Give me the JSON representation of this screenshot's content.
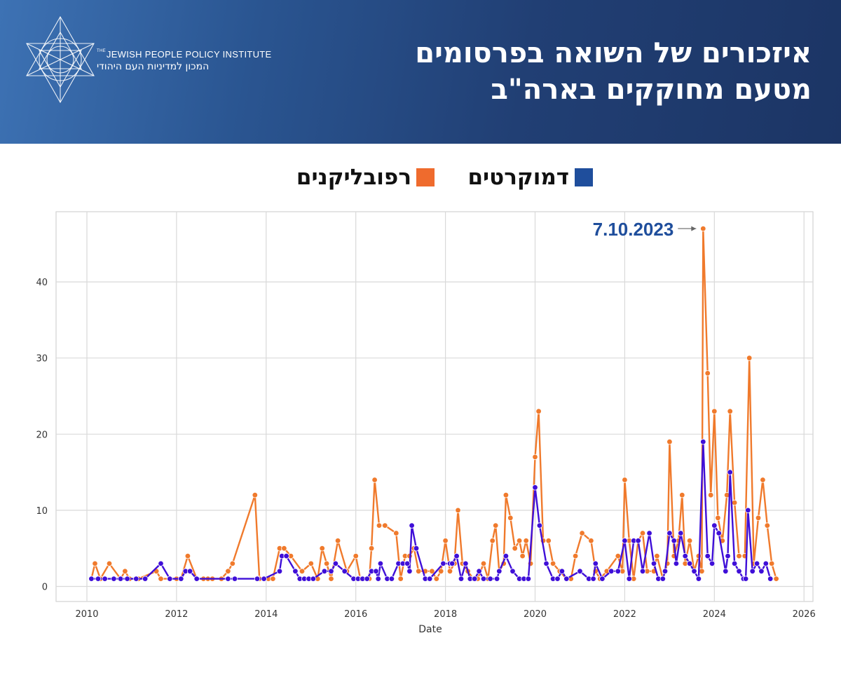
{
  "header": {
    "title_line1": "איזכורים של השואה בפרסומים",
    "title_line2": "מטעם מחוקקים בארה\"ב",
    "logo_en_the": "THE",
    "logo_en": "JEWISH PEOPLE POLICY INSTITUTE",
    "logo_he": "המכון למדיניות העם היהודי"
  },
  "legend": {
    "democrats": "דמוקרטים",
    "republicans": "רפובליקנים"
  },
  "colors": {
    "democrats": "#3f0fd8",
    "republicans": "#f07a2c",
    "legend_democrats": "#1f4e9c",
    "legend_republicans": "#ef6b2d",
    "annotation": "#1f4e9c"
  },
  "chart_data": {
    "type": "line",
    "xlabel": "Date",
    "ylabel": "",
    "xlim": [
      2010,
      2026
    ],
    "ylim": [
      0,
      47
    ],
    "x_ticks": [
      2010,
      2012,
      2014,
      2016,
      2018,
      2020,
      2022,
      2024,
      2026
    ],
    "y_ticks": [
      0,
      10,
      20,
      30,
      40
    ],
    "grid": true,
    "legend_position": "top-center",
    "annotation": {
      "text": "7.10.2023",
      "x": 2023.75,
      "y": 47
    },
    "series": [
      {
        "name": "דמוקרטים",
        "points": [
          [
            2010.1,
            1
          ],
          [
            2010.25,
            1
          ],
          [
            2010.4,
            1
          ],
          [
            2010.6,
            1
          ],
          [
            2010.75,
            1
          ],
          [
            2010.9,
            1
          ],
          [
            2011.1,
            1
          ],
          [
            2011.3,
            1
          ],
          [
            2011.65,
            3
          ],
          [
            2011.85,
            1
          ],
          [
            2012.1,
            1
          ],
          [
            2012.2,
            2
          ],
          [
            2012.3,
            2
          ],
          [
            2012.45,
            1
          ],
          [
            2013.15,
            1
          ],
          [
            2013.3,
            1
          ],
          [
            2013.8,
            1
          ],
          [
            2013.95,
            1
          ],
          [
            2014.3,
            2
          ],
          [
            2014.35,
            4
          ],
          [
            2014.45,
            4
          ],
          [
            2014.65,
            2
          ],
          [
            2014.75,
            1
          ],
          [
            2014.85,
            1
          ],
          [
            2014.95,
            1
          ],
          [
            2015.05,
            1
          ],
          [
            2015.3,
            2
          ],
          [
            2015.45,
            2
          ],
          [
            2015.55,
            3
          ],
          [
            2015.75,
            2
          ],
          [
            2015.95,
            1
          ],
          [
            2016.05,
            1
          ],
          [
            2016.15,
            1
          ],
          [
            2016.25,
            1
          ],
          [
            2016.35,
            2
          ],
          [
            2016.45,
            2
          ],
          [
            2016.5,
            1
          ],
          [
            2016.55,
            3
          ],
          [
            2016.7,
            1
          ],
          [
            2016.8,
            1
          ],
          [
            2016.95,
            3
          ],
          [
            2017.05,
            3
          ],
          [
            2017.15,
            3
          ],
          [
            2017.2,
            2
          ],
          [
            2017.25,
            8
          ],
          [
            2017.35,
            5
          ],
          [
            2017.55,
            1
          ],
          [
            2017.65,
            1
          ],
          [
            2017.95,
            3
          ],
          [
            2018.1,
            3
          ],
          [
            2018.15,
            3
          ],
          [
            2018.25,
            4
          ],
          [
            2018.35,
            1
          ],
          [
            2018.45,
            3
          ],
          [
            2018.55,
            1
          ],
          [
            2018.65,
            1
          ],
          [
            2018.75,
            2
          ],
          [
            2018.85,
            1
          ],
          [
            2019.0,
            1
          ],
          [
            2019.15,
            1
          ],
          [
            2019.2,
            2
          ],
          [
            2019.35,
            4
          ],
          [
            2019.5,
            2
          ],
          [
            2019.65,
            1
          ],
          [
            2019.75,
            1
          ],
          [
            2019.85,
            1
          ],
          [
            2020.0,
            13
          ],
          [
            2020.1,
            8
          ],
          [
            2020.25,
            3
          ],
          [
            2020.4,
            1
          ],
          [
            2020.5,
            1
          ],
          [
            2020.6,
            2
          ],
          [
            2020.7,
            1
          ],
          [
            2021.0,
            2
          ],
          [
            2021.2,
            1
          ],
          [
            2021.3,
            1
          ],
          [
            2021.35,
            3
          ],
          [
            2021.5,
            1
          ],
          [
            2021.7,
            2
          ],
          [
            2021.85,
            2
          ],
          [
            2022.0,
            6
          ],
          [
            2022.1,
            1
          ],
          [
            2022.2,
            6
          ],
          [
            2022.3,
            6
          ],
          [
            2022.4,
            2
          ],
          [
            2022.55,
            7
          ],
          [
            2022.65,
            3
          ],
          [
            2022.75,
            1
          ],
          [
            2022.85,
            1
          ],
          [
            2022.9,
            2
          ],
          [
            2023.0,
            7
          ],
          [
            2023.1,
            6
          ],
          [
            2023.15,
            3
          ],
          [
            2023.25,
            7
          ],
          [
            2023.35,
            4
          ],
          [
            2023.45,
            3
          ],
          [
            2023.55,
            2
          ],
          [
            2023.65,
            1
          ],
          [
            2023.75,
            19
          ],
          [
            2023.85,
            4
          ],
          [
            2023.95,
            3
          ],
          [
            2024.0,
            8
          ],
          [
            2024.1,
            7
          ],
          [
            2024.25,
            2
          ],
          [
            2024.3,
            4
          ],
          [
            2024.35,
            15
          ],
          [
            2024.45,
            3
          ],
          [
            2024.55,
            2
          ],
          [
            2024.65,
            1
          ],
          [
            2024.7,
            1
          ],
          [
            2024.75,
            10
          ],
          [
            2024.85,
            2
          ],
          [
            2024.95,
            3
          ],
          [
            2025.05,
            2
          ],
          [
            2025.15,
            3
          ],
          [
            2025.25,
            1
          ]
        ]
      },
      {
        "name": "רפובליקנים",
        "points": [
          [
            2010.1,
            1
          ],
          [
            2010.18,
            3
          ],
          [
            2010.3,
            1
          ],
          [
            2010.5,
            3
          ],
          [
            2010.75,
            1
          ],
          [
            2010.85,
            2
          ],
          [
            2010.95,
            1
          ],
          [
            2011.15,
            1
          ],
          [
            2011.55,
            2
          ],
          [
            2011.65,
            1
          ],
          [
            2012.0,
            1
          ],
          [
            2012.1,
            1
          ],
          [
            2012.25,
            4
          ],
          [
            2012.45,
            1
          ],
          [
            2012.6,
            1
          ],
          [
            2012.7,
            1
          ],
          [
            2012.8,
            1
          ],
          [
            2013.0,
            1
          ],
          [
            2013.15,
            2
          ],
          [
            2013.25,
            3
          ],
          [
            2013.75,
            12
          ],
          [
            2013.85,
            1
          ],
          [
            2014.05,
            1
          ],
          [
            2014.15,
            1
          ],
          [
            2014.3,
            5
          ],
          [
            2014.4,
            5
          ],
          [
            2014.55,
            4
          ],
          [
            2014.8,
            2
          ],
          [
            2015.0,
            3
          ],
          [
            2015.15,
            1
          ],
          [
            2015.25,
            5
          ],
          [
            2015.35,
            3
          ],
          [
            2015.45,
            1
          ],
          [
            2015.6,
            6
          ],
          [
            2015.8,
            2
          ],
          [
            2016.0,
            4
          ],
          [
            2016.1,
            1
          ],
          [
            2016.3,
            1
          ],
          [
            2016.35,
            5
          ],
          [
            2016.42,
            14
          ],
          [
            2016.52,
            8
          ],
          [
            2016.65,
            8
          ],
          [
            2016.9,
            7
          ],
          [
            2017.0,
            1
          ],
          [
            2017.1,
            4
          ],
          [
            2017.2,
            4
          ],
          [
            2017.3,
            5
          ],
          [
            2017.4,
            2
          ],
          [
            2017.55,
            2
          ],
          [
            2017.7,
            2
          ],
          [
            2017.8,
            1
          ],
          [
            2017.9,
            2
          ],
          [
            2018.0,
            6
          ],
          [
            2018.1,
            2
          ],
          [
            2018.2,
            3
          ],
          [
            2018.28,
            10
          ],
          [
            2018.38,
            3
          ],
          [
            2018.5,
            2
          ],
          [
            2018.62,
            1
          ],
          [
            2018.72,
            1
          ],
          [
            2018.85,
            3
          ],
          [
            2018.95,
            1
          ],
          [
            2019.05,
            6
          ],
          [
            2019.12,
            8
          ],
          [
            2019.2,
            2
          ],
          [
            2019.3,
            3
          ],
          [
            2019.35,
            12
          ],
          [
            2019.45,
            9
          ],
          [
            2019.55,
            5
          ],
          [
            2019.65,
            6
          ],
          [
            2019.72,
            4
          ],
          [
            2019.8,
            6
          ],
          [
            2019.9,
            3
          ],
          [
            2020.0,
            17
          ],
          [
            2020.08,
            23
          ],
          [
            2020.18,
            6
          ],
          [
            2020.3,
            6
          ],
          [
            2020.4,
            3
          ],
          [
            2020.55,
            2
          ],
          [
            2020.7,
            1
          ],
          [
            2020.8,
            1
          ],
          [
            2020.9,
            4
          ],
          [
            2021.05,
            7
          ],
          [
            2021.25,
            6
          ],
          [
            2021.35,
            2
          ],
          [
            2021.45,
            1
          ],
          [
            2021.6,
            2
          ],
          [
            2021.85,
            4
          ],
          [
            2021.95,
            2
          ],
          [
            2022.0,
            14
          ],
          [
            2022.1,
            6
          ],
          [
            2022.2,
            1
          ],
          [
            2022.3,
            6
          ],
          [
            2022.4,
            7
          ],
          [
            2022.5,
            2
          ],
          [
            2022.65,
            2
          ],
          [
            2022.72,
            4
          ],
          [
            2022.85,
            1
          ],
          [
            2022.95,
            3
          ],
          [
            2023.0,
            19
          ],
          [
            2023.1,
            4
          ],
          [
            2023.2,
            6
          ],
          [
            2023.28,
            12
          ],
          [
            2023.35,
            3
          ],
          [
            2023.45,
            6
          ],
          [
            2023.55,
            2
          ],
          [
            2023.65,
            4
          ],
          [
            2023.72,
            2
          ],
          [
            2023.75,
            47
          ],
          [
            2023.85,
            28
          ],
          [
            2023.92,
            12
          ],
          [
            2024.0,
            23
          ],
          [
            2024.08,
            9
          ],
          [
            2024.18,
            6
          ],
          [
            2024.28,
            12
          ],
          [
            2024.35,
            23
          ],
          [
            2024.45,
            11
          ],
          [
            2024.55,
            4
          ],
          [
            2024.68,
            4
          ],
          [
            2024.78,
            30
          ],
          [
            2024.88,
            3
          ],
          [
            2024.98,
            9
          ],
          [
            2025.08,
            14
          ],
          [
            2025.18,
            8
          ],
          [
            2025.28,
            3
          ],
          [
            2025.38,
            1
          ]
        ]
      }
    ]
  }
}
